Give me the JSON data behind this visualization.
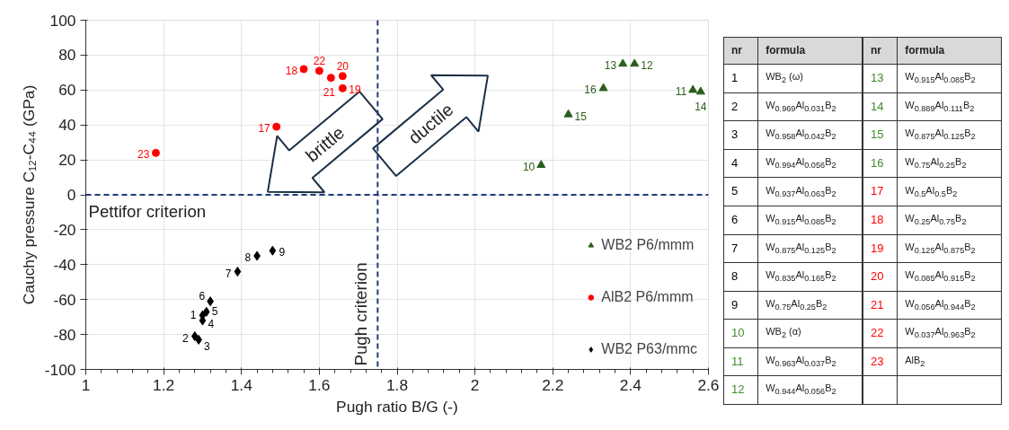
{
  "chart_data": {
    "type": "scatter",
    "xlabel": "Pugh ratio B/G (-)",
    "ylabel": "Cauchy pressure C₁₂-C₄₄ (GPa)",
    "xlim": [
      1,
      2.6
    ],
    "xticks": [
      1,
      1.2,
      1.4,
      1.6,
      1.8,
      2,
      2.2,
      2.4,
      2.6
    ],
    "ylim": [
      -100,
      100
    ],
    "yticks": [
      -100,
      -80,
      -60,
      -40,
      -20,
      0,
      20,
      40,
      60,
      80,
      100
    ],
    "grid": true,
    "legend": "bottom right",
    "series": [
      {
        "name": "WB2 P6/mmm",
        "color": "#2a5e1c",
        "marker": "triangle",
        "x": [
          2.17,
          2.56,
          2.41,
          2.38,
          2.58,
          2.24,
          2.33
        ],
        "values": [
          17,
          60,
          75,
          75,
          59,
          46,
          61
        ]
      },
      {
        "name": "AlB2 P6/mmm",
        "color": "#ff0000",
        "marker": "circle",
        "x": [
          1.49,
          1.56,
          1.66,
          1.66,
          1.63,
          1.6,
          1.18
        ],
        "values": [
          39,
          72,
          61,
          68,
          67,
          71,
          24
        ]
      },
      {
        "name": "WB2 P63/mmc",
        "color": "#000000",
        "marker": "diamond",
        "x": [
          1.3,
          1.28,
          1.29,
          1.3,
          1.31,
          1.32,
          1.39,
          1.44,
          1.48
        ],
        "values": [
          -69,
          -81,
          -83,
          -72,
          -67,
          -61,
          -44,
          -35,
          -32
        ]
      }
    ],
    "ref_lines": [
      {
        "axis": "y",
        "value": 0,
        "label": "Pettifor criterion",
        "color": "#1f3a7a",
        "line_style": "dashed"
      },
      {
        "axis": "x",
        "value": 1.75,
        "label": "Pugh criterion",
        "color": "#1f3a7a",
        "line_style": "dashed"
      }
    ],
    "annotations": [
      "brittle",
      "ductile",
      {
        "text": "1",
        "x": 1.3,
        "y": -69
      },
      {
        "text": "2",
        "x": 1.28,
        "y": -81
      },
      {
        "text": "3",
        "x": 1.29,
        "y": -83
      },
      {
        "text": "4",
        "x": 1.3,
        "y": -72
      },
      {
        "text": "5",
        "x": 1.31,
        "y": -67
      },
      {
        "text": "6",
        "x": 1.32,
        "y": -61
      },
      {
        "text": "7",
        "x": 1.39,
        "y": -44
      },
      {
        "text": "8",
        "x": 1.44,
        "y": -35
      },
      {
        "text": "9",
        "x": 1.48,
        "y": -32
      },
      {
        "text": "10",
        "x": 2.17,
        "y": 17
      },
      {
        "text": "11",
        "x": 2.56,
        "y": 60
      },
      {
        "text": "12",
        "x": 2.41,
        "y": 75
      },
      {
        "text": "13",
        "x": 2.38,
        "y": 75
      },
      {
        "text": "14",
        "x": 2.58,
        "y": 59
      },
      {
        "text": "15",
        "x": 2.24,
        "y": 46
      },
      {
        "text": "16",
        "x": 2.33,
        "y": 61
      },
      {
        "text": "17",
        "x": 1.49,
        "y": 39
      },
      {
        "text": "18",
        "x": 1.56,
        "y": 72
      },
      {
        "text": "19",
        "x": 1.66,
        "y": 61
      },
      {
        "text": "20",
        "x": 1.66,
        "y": 68
      },
      {
        "text": "21",
        "x": 1.63,
        "y": 67
      },
      {
        "text": "22",
        "x": 1.6,
        "y": 71
      },
      {
        "text": "23",
        "x": 1.18,
        "y": 24
      },
      "nr",
      "formula",
      "1 WB$_{2}$ (ω)",
      "2 W$_{0.969}$Al$_{0.031}$B$_{2}$",
      "3 W$_{0.958}$Al$_{0.042}$B$_{2}$",
      "4 W$_{0.994}$Al$_{0.056}$B$_{2}$",
      "5 W$_{0.937}$Al$_{0.063}$B$_{2}$",
      "6 W$_{0.915}$Al$_{0.085}$B$_{2}$",
      "7 W$_{0.875}$Al$_{0.125}$B$_{2}$",
      "8 W$_{0.835}$Al$_{0.165}$B$_{2}$",
      "9 W$_{0.75}$Al$_{0.25}$B$_{2}$",
      "10 WB$_{2}$ (α)",
      "11 W$_{0.963}$Al$_{0.037}$B$_{2}$",
      "12 W$_{0.944}$Al$_{0.056}$B$_{2}$",
      "13 W$_{0.915}$Al$_{0.085}$B$_{2}$",
      "14 W$_{0.889}$Al$_{0.111}$B$_{2}$",
      "15 W$_{0.875}$Al$_{0.125}$B$_{2}$",
      "16 W$_{0.75}$Al$_{0.25}$B$_{2}$",
      "17 W$_{0.5}$Al$_{0.5}$B$_{2}$",
      "18 W$_{0.25}$Al$_{0.75}$B$_{2}$",
      "19 W$_{0.125}$Al$_{0.875}$B$_{2}$",
      "20 W$_{0.085}$Al$_{0.915}$B$_{2}$",
      "21 W$_{0.056}$Al$_{0.944}$B$_{2}$",
      "22 W$_{0.037}$Al$_{0.963}$B$_{2}$",
      "23 AlB$_{2}$"
    ]
  }
}
